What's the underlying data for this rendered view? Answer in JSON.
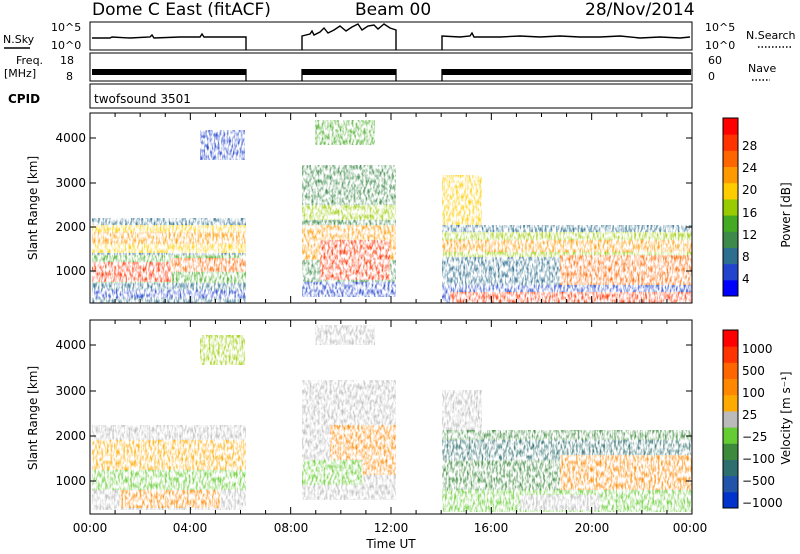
{
  "header": {
    "title": "Dome C East (fitACF)",
    "beam": "Beam 00",
    "date": "28/Nov/2014"
  },
  "noise_panel": {
    "left_label": "N.Sky",
    "right_label": "N.Search",
    "left_ticks": [
      "10^5",
      "10^0"
    ],
    "right_ticks": [
      "10^5",
      "10^0"
    ]
  },
  "freq_panel": {
    "left_label_1": "Freq.",
    "left_label_2": "[MHz]",
    "left_ticks": [
      "18",
      "8"
    ],
    "right_label": "Nave",
    "right_ticks": [
      "60",
      "0"
    ]
  },
  "cpid": {
    "label": "CPID",
    "program": "twofsound 3501"
  },
  "colors": {
    "power": [
      "#0000ff",
      "#2244cc",
      "#2e6e8e",
      "#3d8a4a",
      "#44aa22",
      "#99cc00",
      "#ffcc00",
      "#ff9900",
      "#ff6600",
      "#ff3300",
      "#ff0000"
    ],
    "velocity": [
      "#0033cc",
      "#2255aa",
      "#2e6e6e",
      "#3d8a3d",
      "#66cc33",
      "#bbbbbb",
      "#ffaa00",
      "#ff8800",
      "#ff6600",
      "#ff3300",
      "#ff0000"
    ]
  },
  "chart_data": [
    {
      "type": "heatmap",
      "panel": "power",
      "ylabel": "Slant Range [km]",
      "x_ticks": [
        "00:00",
        "04:00",
        "08:00",
        "12:00",
        "16:00",
        "20:00",
        "00:00"
      ],
      "y_ticks": [
        "1000",
        "2000",
        "3000",
        "4000"
      ],
      "ylim": [
        180,
        4500
      ],
      "data_gaps": [
        [
          "06:10",
          "08:30"
        ],
        [
          "12:10",
          "14:10"
        ]
      ],
      "colorbar_label": "Power [dB]",
      "colorbar_ticks": [
        "28",
        "24",
        "20",
        "16",
        "12",
        "8",
        "4"
      ],
      "colorbar_range": [
        0,
        32
      ]
    },
    {
      "type": "heatmap",
      "panel": "velocity",
      "ylabel": "Slant Range [km]",
      "xlabel": "Time UT",
      "x_ticks": [
        "00:00",
        "04:00",
        "08:00",
        "12:00",
        "16:00",
        "20:00",
        "00:00"
      ],
      "y_ticks": [
        "1000",
        "2000",
        "3000",
        "4000"
      ],
      "ylim": [
        180,
        4500
      ],
      "colorbar_label": "Velocity [m s⁻¹]",
      "colorbar_ticks": [
        "1000",
        "500",
        "100",
        "25",
        "−25",
        "−100",
        "−500",
        "−1000"
      ]
    }
  ]
}
